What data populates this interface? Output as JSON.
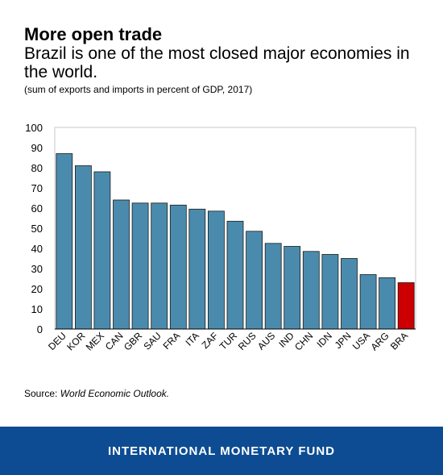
{
  "header": {
    "title": "More open trade",
    "subtitle": "Brazil is one of the most closed major economies in the world.",
    "note": "(sum of exports and imports in percent of GDP, 2017)"
  },
  "chart_data": {
    "type": "bar",
    "title": "",
    "xlabel": "",
    "ylabel": "",
    "ylim": [
      0,
      100
    ],
    "yticks": [
      0,
      10,
      20,
      30,
      40,
      50,
      60,
      70,
      80,
      90,
      100
    ],
    "categories": [
      "DEU",
      "KOR",
      "MEX",
      "CAN",
      "GBR",
      "SAU",
      "FRA",
      "ITA",
      "ZAF",
      "TUR",
      "RUS",
      "AUS",
      "IND",
      "CHN",
      "IDN",
      "JPN",
      "USA",
      "ARG",
      "BRA"
    ],
    "values": [
      87,
      81,
      78,
      64,
      62.5,
      62.5,
      61.5,
      59.5,
      58.5,
      53.5,
      48.5,
      42.5,
      41,
      38.5,
      37,
      35,
      27,
      25.5,
      23
    ],
    "colors": {
      "default": "#4a8bad",
      "highlight": "#cc0000",
      "highlight_category": "BRA"
    },
    "grid": false
  },
  "source": {
    "label": "Source:",
    "text": "World Economic Outlook."
  },
  "footer": {
    "text": "INTERNATIONAL MONETARY FUND",
    "color": "#0d4c92"
  }
}
